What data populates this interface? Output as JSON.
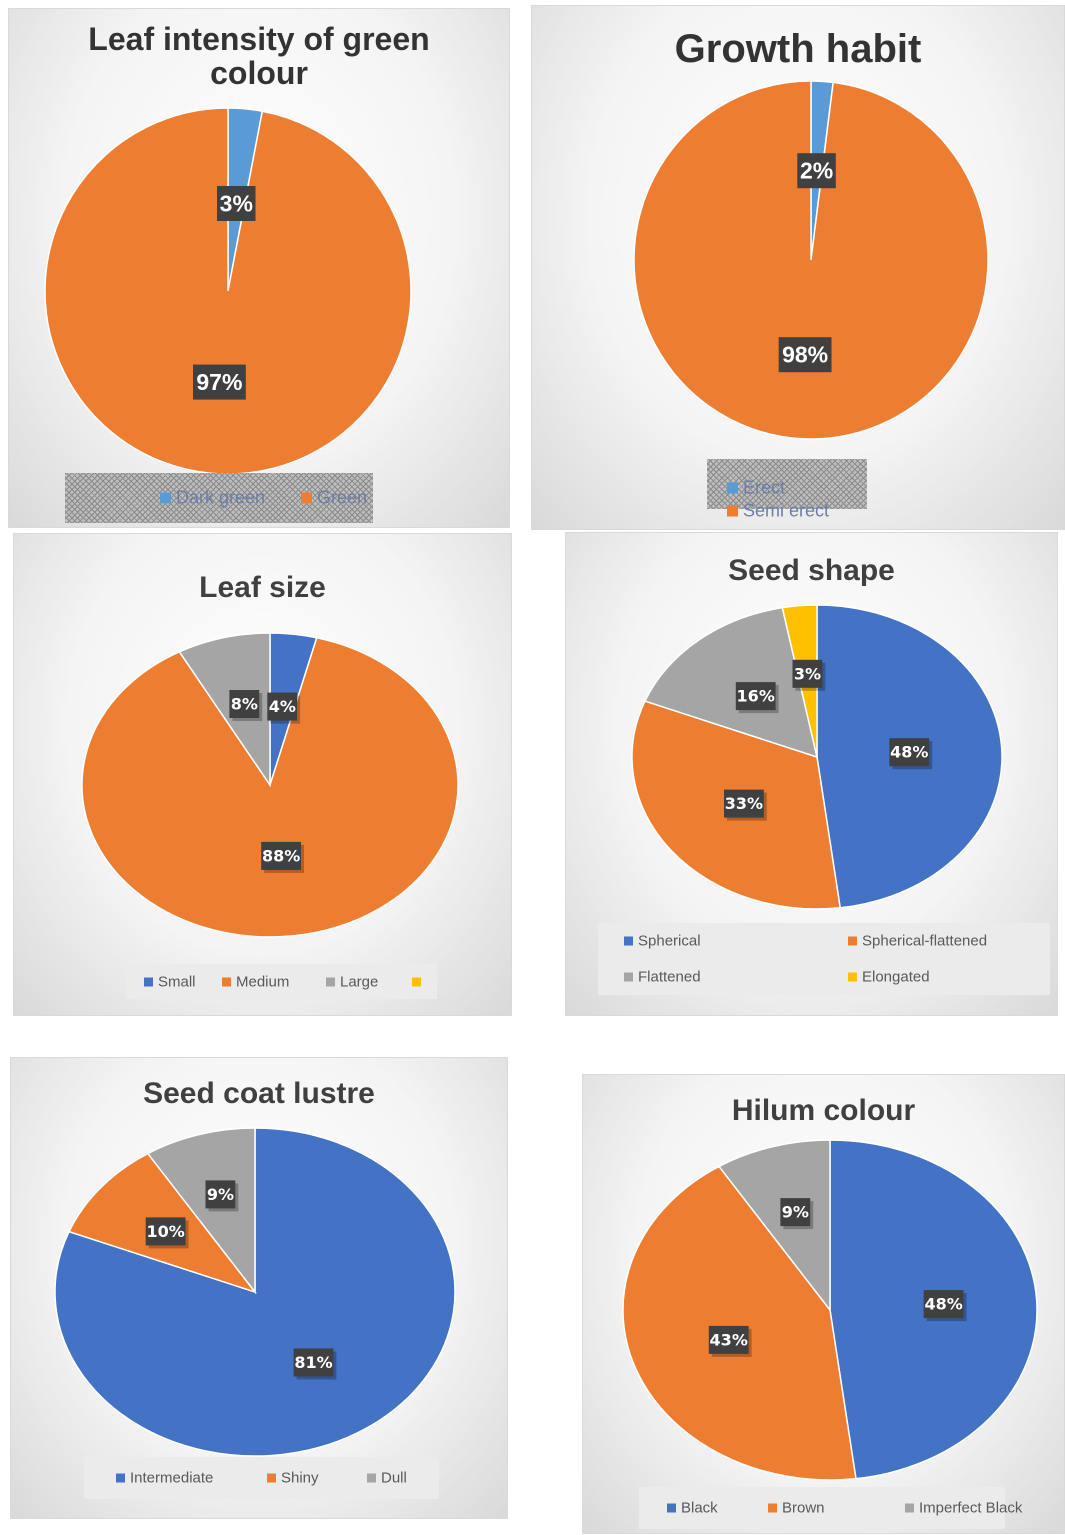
{
  "colors": {
    "blue": "#4472C4",
    "lightblue": "#5B9BD5",
    "orange": "#ED7D31",
    "gray": "#A5A5A5",
    "gold": "#FFC000"
  },
  "chart_data": [
    {
      "type": "pie",
      "title": "Leaf intensity of green colour",
      "title_lines": [
        "Leaf intensity of green",
        "colour"
      ],
      "legend_position": "bottom",
      "series": [
        {
          "name": "Dark green",
          "value": 3,
          "label": "3%",
          "color": "#5B9BD5"
        },
        {
          "name": "Green",
          "value": 97,
          "label": "97%",
          "color": "#ED7D31"
        }
      ]
    },
    {
      "type": "pie",
      "title": "Growth habit",
      "title_lines": [
        "Growth habit"
      ],
      "legend_position": "bottom",
      "series": [
        {
          "name": "Erect",
          "value": 2,
          "label": "2%",
          "color": "#5B9BD5"
        },
        {
          "name": "Semi erect",
          "value": 98,
          "label": "98%",
          "color": "#ED7D31"
        }
      ]
    },
    {
      "type": "pie",
      "title": "Leaf size",
      "title_lines": [
        "Leaf size"
      ],
      "legend_position": "bottom",
      "series": [
        {
          "name": "Small",
          "value": 4,
          "label": "4%",
          "color": "#4472C4"
        },
        {
          "name": "Medium",
          "value": 88,
          "label": "88%",
          "color": "#ED7D31"
        },
        {
          "name": "Large",
          "value": 8,
          "label": "8%",
          "color": "#A5A5A5"
        },
        {
          "name": "",
          "value": 0,
          "label": "",
          "color": "#FFC000"
        }
      ]
    },
    {
      "type": "pie",
      "title": "Seed shape",
      "title_lines": [
        "Seed shape"
      ],
      "legend_position": "bottom",
      "series": [
        {
          "name": "Spherical",
          "value": 48,
          "label": "48%",
          "color": "#4472C4"
        },
        {
          "name": "Spherical-flattened",
          "value": 33,
          "label": "33%",
          "color": "#ED7D31"
        },
        {
          "name": "Flattened",
          "value": 16,
          "label": "16%",
          "color": "#A5A5A5"
        },
        {
          "name": "Elongated",
          "value": 3,
          "label": "3%",
          "color": "#FFC000"
        }
      ]
    },
    {
      "type": "pie",
      "title": "Seed coat lustre",
      "title_lines": [
        "Seed coat lustre"
      ],
      "legend_position": "bottom",
      "series": [
        {
          "name": "Intermediate",
          "value": 81,
          "label": "81%",
          "color": "#4472C4"
        },
        {
          "name": "Shiny",
          "value": 10,
          "label": "10%",
          "color": "#ED7D31"
        },
        {
          "name": "Dull",
          "value": 9,
          "label": "9%",
          "color": "#A5A5A5"
        }
      ]
    },
    {
      "type": "pie",
      "title": "Hilum colour",
      "title_lines": [
        "Hilum colour"
      ],
      "legend_position": "bottom",
      "series": [
        {
          "name": "Black",
          "value": 48,
          "label": "48%",
          "color": "#4472C4"
        },
        {
          "name": "Brown",
          "value": 43,
          "label": "43%",
          "color": "#ED7D31"
        },
        {
          "name": "Imperfect Black",
          "value": 9,
          "label": "9%",
          "color": "#A5A5A5"
        }
      ]
    }
  ]
}
